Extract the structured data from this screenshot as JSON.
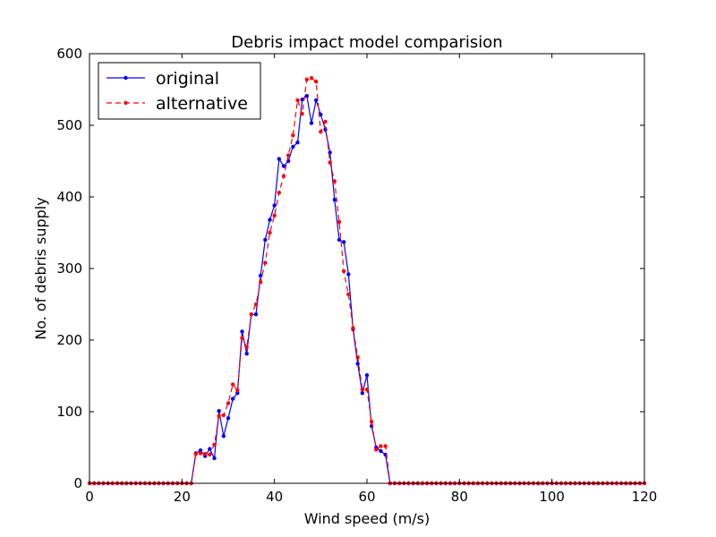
{
  "chart_data": {
    "type": "line",
    "title": "Debris impact model comparision",
    "xlabel": "Wind speed (m/s)",
    "ylabel": "No. of debris supply",
    "xlim": [
      0,
      120
    ],
    "ylim": [
      0,
      600
    ],
    "xticks": [
      0,
      20,
      40,
      60,
      80,
      100,
      120
    ],
    "yticks": [
      0,
      100,
      200,
      300,
      400,
      500,
      600
    ],
    "grid": false,
    "legend": "top-left",
    "x": [
      0,
      1,
      2,
      3,
      4,
      5,
      6,
      7,
      8,
      9,
      10,
      11,
      12,
      13,
      14,
      15,
      16,
      17,
      18,
      19,
      20,
      21,
      22,
      23,
      24,
      25,
      26,
      27,
      28,
      29,
      30,
      31,
      32,
      33,
      34,
      35,
      36,
      37,
      38,
      39,
      40,
      41,
      42,
      43,
      44,
      45,
      46,
      47,
      48,
      49,
      50,
      51,
      52,
      53,
      54,
      55,
      56,
      57,
      58,
      59,
      60,
      61,
      62,
      63,
      64,
      65,
      66,
      67,
      68,
      69,
      70,
      71,
      72,
      73,
      74,
      75,
      76,
      77,
      78,
      79,
      80,
      81,
      82,
      83,
      84,
      85,
      86,
      87,
      88,
      89,
      90,
      91,
      92,
      93,
      94,
      95,
      96,
      97,
      98,
      99,
      100,
      101,
      102,
      103,
      104,
      105,
      106,
      107,
      108,
      109,
      110,
      111,
      112,
      113,
      114,
      115,
      116,
      117,
      118,
      119,
      120
    ],
    "series": [
      {
        "name": "original",
        "color": "#0000ff",
        "linestyle": "solid",
        "values": [
          0,
          0,
          0,
          0,
          0,
          0,
          0,
          0,
          0,
          0,
          0,
          0,
          0,
          0,
          0,
          0,
          0,
          0,
          0,
          0,
          0,
          0,
          0,
          42,
          46,
          38,
          48,
          35,
          101,
          66,
          91,
          118,
          126,
          212,
          181,
          236,
          236,
          290,
          340,
          368,
          388,
          453,
          443,
          450,
          470,
          476,
          536,
          541,
          503,
          535,
          515,
          494,
          462,
          396,
          340,
          337,
          292,
          215,
          167,
          126,
          151,
          80,
          50,
          45,
          40,
          0,
          0,
          0,
          0,
          0,
          0,
          0,
          0,
          0,
          0,
          0,
          0,
          0,
          0,
          0,
          0,
          0,
          0,
          0,
          0,
          0,
          0,
          0,
          0,
          0,
          0,
          0,
          0,
          0,
          0,
          0,
          0,
          0,
          0,
          0,
          0,
          0,
          0,
          0,
          0,
          0,
          0,
          0,
          0,
          0,
          0,
          0,
          0,
          0,
          0,
          0,
          0,
          0,
          0,
          0,
          0
        ]
      },
      {
        "name": "alternative",
        "color": "#ff0000",
        "linestyle": "dashed",
        "values": [
          0,
          0,
          0,
          0,
          0,
          0,
          0,
          0,
          0,
          0,
          0,
          0,
          0,
          0,
          0,
          0,
          0,
          0,
          0,
          0,
          0,
          0,
          0,
          41,
          42,
          41,
          40,
          54,
          94,
          95,
          112,
          138,
          130,
          203,
          190,
          236,
          250,
          281,
          308,
          350,
          374,
          406,
          429,
          458,
          486,
          535,
          516,
          564,
          566,
          561,
          491,
          505,
          448,
          422,
          365,
          296,
          264,
          217,
          176,
          131,
          131,
          86,
          47,
          52,
          52,
          0,
          0,
          0,
          0,
          0,
          0,
          0,
          0,
          0,
          0,
          0,
          0,
          0,
          0,
          0,
          0,
          0,
          0,
          0,
          0,
          0,
          0,
          0,
          0,
          0,
          0,
          0,
          0,
          0,
          0,
          0,
          0,
          0,
          0,
          0,
          0,
          0,
          0,
          0,
          0,
          0,
          0,
          0,
          0,
          0,
          0,
          0,
          0,
          0,
          0,
          0,
          0,
          0,
          0,
          0,
          0
        ]
      }
    ]
  }
}
